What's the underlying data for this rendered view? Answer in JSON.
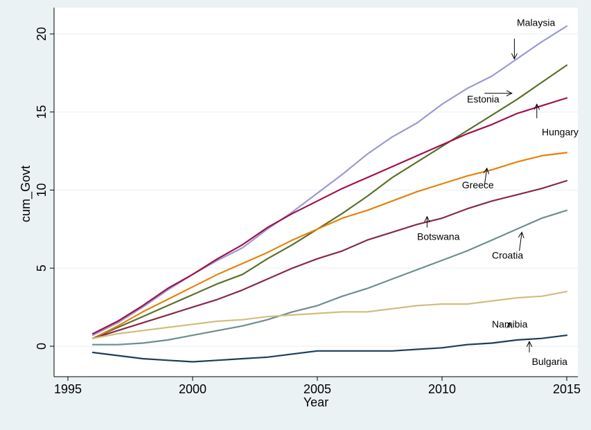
{
  "chart_data": {
    "type": "line",
    "xlabel": "Year",
    "ylabel": "cum_Govt",
    "xlim": [
      1995,
      2015
    ],
    "ylim": [
      -1.8,
      21
    ],
    "xticks": [
      1995,
      2000,
      2005,
      2010,
      2015
    ],
    "yticks": [
      0,
      5,
      10,
      15,
      20
    ],
    "grid": "horizontal",
    "x": [
      1996,
      1997,
      1998,
      1999,
      2000,
      2001,
      2002,
      2003,
      2004,
      2005,
      2006,
      2007,
      2008,
      2009,
      2010,
      2011,
      2012,
      2013,
      2014,
      2015
    ],
    "series": [
      {
        "name": "Malaysia",
        "color": "#9a9ad2",
        "values": [
          0.7,
          1.5,
          2.5,
          3.6,
          4.6,
          5.5,
          6.3,
          7.5,
          8.6,
          9.8,
          11.0,
          12.3,
          13.4,
          14.3,
          15.5,
          16.5,
          17.3,
          18.4,
          19.5,
          20.5
        ]
      },
      {
        "name": "Estonia",
        "color": "#59702a",
        "values": [
          0.5,
          1.2,
          1.9,
          2.6,
          3.3,
          4.0,
          4.6,
          5.6,
          6.5,
          7.5,
          8.5,
          9.6,
          10.8,
          11.8,
          12.8,
          13.8,
          14.8,
          15.8,
          16.9,
          18.0
        ]
      },
      {
        "name": "Hungary",
        "color": "#a0104a",
        "values": [
          0.8,
          1.6,
          2.6,
          3.7,
          4.6,
          5.6,
          6.5,
          7.6,
          8.5,
          9.3,
          10.1,
          10.8,
          11.5,
          12.2,
          12.9,
          13.6,
          14.2,
          14.9,
          15.4,
          15.9
        ]
      },
      {
        "name": "Greece",
        "color": "#e5820c",
        "values": [
          0.5,
          1.3,
          2.2,
          3.0,
          3.8,
          4.6,
          5.3,
          6.0,
          6.8,
          7.5,
          8.2,
          8.7,
          9.3,
          9.9,
          10.4,
          10.9,
          11.3,
          11.8,
          12.2,
          12.4
        ]
      },
      {
        "name": "Botswana",
        "color": "#87294a",
        "values": [
          0.5,
          1.0,
          1.5,
          2.0,
          2.5,
          3.0,
          3.6,
          4.3,
          5.0,
          5.6,
          6.1,
          6.8,
          7.3,
          7.8,
          8.2,
          8.8,
          9.3,
          9.7,
          10.1,
          10.6
        ]
      },
      {
        "name": "Croatia",
        "color": "#6d8d8d",
        "values": [
          0.1,
          0.1,
          0.2,
          0.4,
          0.7,
          1.0,
          1.3,
          1.7,
          2.2,
          2.6,
          3.2,
          3.7,
          4.3,
          4.9,
          5.5,
          6.1,
          6.8,
          7.5,
          8.2,
          8.7
        ]
      },
      {
        "name": "Namibia",
        "color": "#cfbf7e",
        "values": [
          0.5,
          0.8,
          1.0,
          1.2,
          1.4,
          1.6,
          1.7,
          1.9,
          2.0,
          2.1,
          2.2,
          2.2,
          2.4,
          2.6,
          2.7,
          2.7,
          2.9,
          3.1,
          3.2,
          3.5
        ]
      },
      {
        "name": "Bulgaria",
        "color": "#1c3c5c",
        "values": [
          -0.4,
          -0.6,
          -0.8,
          -0.9,
          -1.0,
          -0.9,
          -0.8,
          -0.7,
          -0.5,
          -0.3,
          -0.3,
          -0.3,
          -0.3,
          -0.2,
          -0.1,
          0.1,
          0.2,
          0.4,
          0.5,
          0.7
        ]
      }
    ],
    "annotations": [
      {
        "text": "Malaysia",
        "tx": 2013.0,
        "ty": 20.5,
        "ax1": 2012.9,
        "ay1": 19.7,
        "ax2": 2012.9,
        "ay2": 18.4
      },
      {
        "text": "Estonia",
        "tx": 2011.0,
        "ty": 15.6,
        "ax1": 2011.7,
        "ay1": 16.2,
        "ax2": 2012.8,
        "ay2": 16.2
      },
      {
        "text": "Hungary",
        "tx": 2014.0,
        "ty": 13.5,
        "ax1": 2013.8,
        "ay1": 14.6,
        "ax2": 2013.8,
        "ay2": 15.5
      },
      {
        "text": "Greece",
        "tx": 2010.8,
        "ty": 10.1,
        "ax1": 2011.7,
        "ay1": 10.3,
        "ax2": 2011.8,
        "ay2": 11.4
      },
      {
        "text": "Botswana",
        "tx": 2009.0,
        "ty": 6.8,
        "ax1": 2009.4,
        "ay1": 7.6,
        "ax2": 2009.4,
        "ay2": 8.3
      },
      {
        "text": "Croatia",
        "tx": 2012.0,
        "ty": 5.6,
        "ax1": 2013.1,
        "ay1": 6.1,
        "ax2": 2013.2,
        "ay2": 7.3
      },
      {
        "text": "Namibia",
        "tx": 2012.0,
        "ty": 1.2,
        "ax1": 2012.7,
        "ay1": 1.2,
        "ax2": 2012.7,
        "ay2": 1.5
      },
      {
        "text": "Bulgaria",
        "tx": 2013.6,
        "ty": -1.2,
        "ax1": 2013.5,
        "ay1": -0.4,
        "ax2": 2013.5,
        "ay2": 0.3
      }
    ]
  }
}
